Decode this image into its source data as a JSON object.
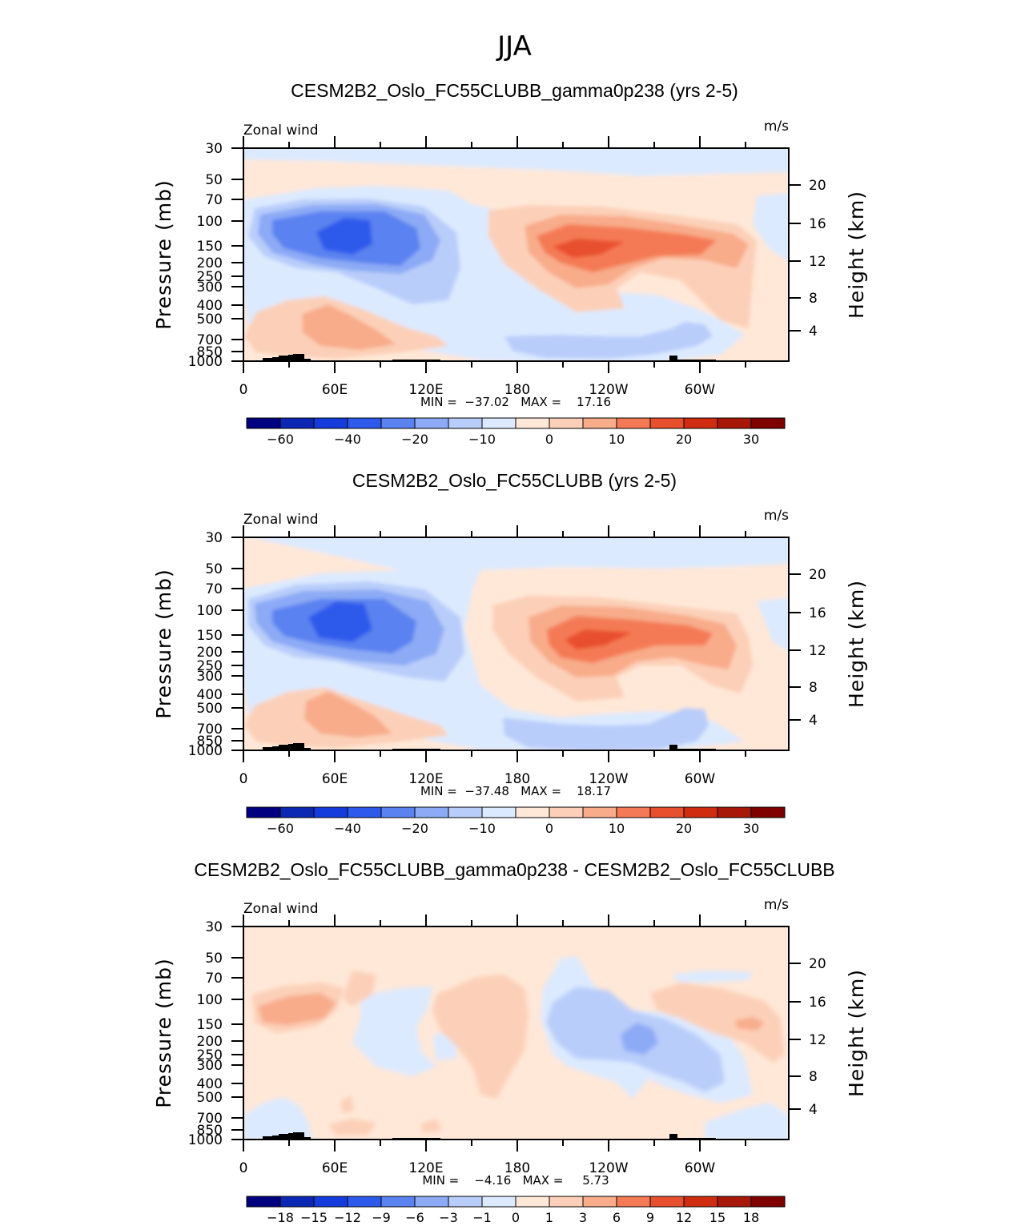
{
  "page": {
    "title": "JJA"
  },
  "chart_data": [
    {
      "type": "heatmap",
      "title": "CESM2B2_Oslo_FC55CLUBB_gamma0p238 (yrs 2-5)",
      "left_label": "Zonal wind",
      "right_label": "m/s",
      "ylabel": "Pressure (mb)",
      "ylabel_right": "Height (km)",
      "x_ticks": [
        "0",
        "60E",
        "120E",
        "180",
        "120W",
        "60W"
      ],
      "y_ticks": [
        "30",
        "50",
        "70",
        "100",
        "150",
        "200",
        "250",
        "300",
        "400",
        "500",
        "700",
        "850",
        "1000"
      ],
      "y_right_ticks": [
        "20",
        "16",
        "12",
        "8",
        "4"
      ],
      "stats_text": "MIN =  −37.02   MAX =    17.16",
      "min": -37.02,
      "max": 17.16,
      "colorbar_labels": [
        "−60",
        "−40",
        "−20",
        "−10",
        "0",
        "10",
        "20",
        "30"
      ]
    },
    {
      "type": "heatmap",
      "title": "CESM2B2_Oslo_FC55CLUBB (yrs 2-5)",
      "left_label": "Zonal wind",
      "right_label": "m/s",
      "ylabel": "Pressure (mb)",
      "ylabel_right": "Height (km)",
      "x_ticks": [
        "0",
        "60E",
        "120E",
        "180",
        "120W",
        "60W"
      ],
      "y_ticks": [
        "30",
        "50",
        "70",
        "100",
        "150",
        "200",
        "250",
        "300",
        "400",
        "500",
        "700",
        "850",
        "1000"
      ],
      "y_right_ticks": [
        "20",
        "16",
        "12",
        "8",
        "4"
      ],
      "stats_text": "MIN =  −37.48   MAX =    18.17",
      "min": -37.48,
      "max": 18.17,
      "colorbar_labels": [
        "−60",
        "−40",
        "−20",
        "−10",
        "0",
        "10",
        "20",
        "30"
      ]
    },
    {
      "type": "heatmap",
      "title": "CESM2B2_Oslo_FC55CLUBB_gamma0p238 - CESM2B2_Oslo_FC55CLUBB",
      "left_label": "Zonal wind",
      "right_label": "m/s",
      "ylabel": "Pressure (mb)",
      "ylabel_right": "Height (km)",
      "x_ticks": [
        "0",
        "60E",
        "120E",
        "180",
        "120W",
        "60W"
      ],
      "y_ticks": [
        "30",
        "50",
        "70",
        "100",
        "150",
        "200",
        "250",
        "300",
        "400",
        "500",
        "700",
        "850",
        "1000"
      ],
      "y_right_ticks": [
        "20",
        "16",
        "12",
        "8",
        "4"
      ],
      "stats_text": "MIN =    −4.16   MAX =     5.73",
      "min": -4.16,
      "max": 5.73,
      "colorbar_labels": [
        "−18",
        "−15",
        "−12",
        "−9",
        "−6",
        "−3",
        "−1",
        "0",
        "1",
        "3",
        "6",
        "9",
        "12",
        "15",
        "18"
      ]
    }
  ],
  "colors": {
    "scale": [
      "#000080",
      "#0a28b4",
      "#143cdc",
      "#2d5aeb",
      "#5a82f0",
      "#8caaf5",
      "#b9cdfa",
      "#dceaff",
      "#ffe8d8",
      "#fcd0b8",
      "#f8ac8a",
      "#f47a55",
      "#e8502d",
      "#d02c10",
      "#a81808",
      "#800000"
    ]
  }
}
